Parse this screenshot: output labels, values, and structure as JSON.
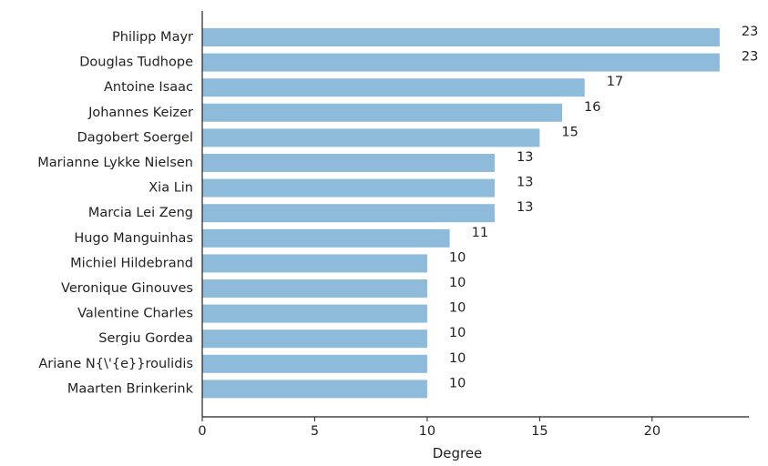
{
  "chart_data": {
    "type": "bar",
    "orientation": "horizontal",
    "title": "",
    "xlabel": "Degree",
    "ylabel": "",
    "xlim": [
      0,
      24.3
    ],
    "xticks": [
      0,
      5,
      10,
      15,
      20
    ],
    "grid": false,
    "legend": "none",
    "bar_color": "#8fbbdb",
    "categories": [
      "Philipp Mayr",
      "Douglas Tudhope",
      "Antoine Isaac",
      "Johannes Keizer",
      "Dagobert Soergel",
      "Marianne Lykke Nielsen",
      "Xia Lin",
      "Marcia Lei Zeng",
      "Hugo Manguinhas",
      "Michiel Hildebrand",
      "Veronique Ginouves",
      "Valentine Charles",
      "Sergiu Gordea",
      "Ariane N{\\'{e}}roulidis",
      "Maarten Brinkerink"
    ],
    "values": [
      23,
      23,
      17,
      16,
      15,
      13,
      13,
      13,
      11,
      10,
      10,
      10,
      10,
      10,
      10
    ]
  }
}
